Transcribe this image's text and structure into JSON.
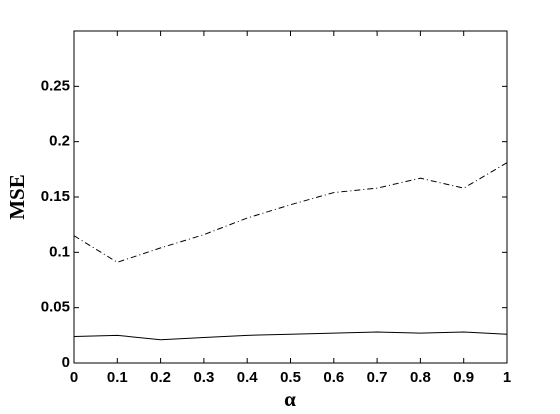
{
  "chart_data": {
    "type": "line",
    "x_label": "α",
    "y_label": "MSE",
    "x": [
      0,
      0.1,
      0.2,
      0.3,
      0.4,
      0.5,
      0.6,
      0.7,
      0.8,
      0.9,
      1
    ],
    "series": [
      {
        "color": "#000000",
        "style": "dashdot",
        "values": [
          0.115,
          0.091,
          0.104,
          0.116,
          0.131,
          0.143,
          0.154,
          0.158,
          0.167,
          0.158,
          0.181
        ]
      },
      {
        "color": "#000000",
        "style": "solid",
        "values": [
          0.024,
          0.025,
          0.021,
          0.023,
          0.025,
          0.026,
          0.027,
          0.028,
          0.027,
          0.028,
          0.026
        ]
      }
    ],
    "xlim": [
      0,
      1
    ],
    "xticks": [
      0,
      0.1,
      0.2,
      0.3,
      0.4,
      0.5,
      0.6,
      0.7,
      0.8,
      0.9,
      1
    ],
    "ylim": [
      0,
      0.3
    ],
    "yticks": [
      0,
      0.05,
      0.1,
      0.15,
      0.2,
      0.25
    ],
    "grid": false
  }
}
